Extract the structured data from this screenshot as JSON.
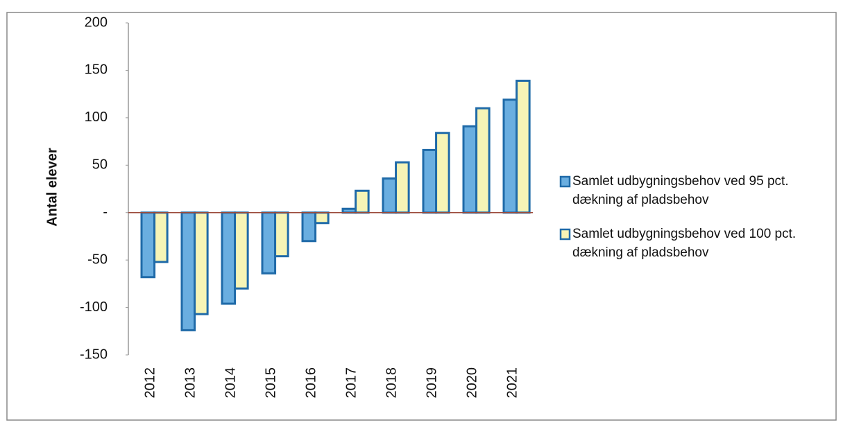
{
  "chart_data": {
    "type": "bar",
    "y_axis_label": "Antal elever",
    "categories": [
      "2012",
      "2013",
      "2014",
      "2015",
      "2016",
      "2017",
      "2018",
      "2019",
      "2020",
      "2021"
    ],
    "series": [
      {
        "name": "Samlet udbygningsbehov ved 95 pct. dækning af pladsbehov",
        "color": "#6aaee0",
        "values": [
          -68,
          -124,
          -96,
          -64,
          -30,
          4,
          36,
          66,
          91,
          119
        ]
      },
      {
        "name": "Samlet udbygningsbehov ved 100 pct. dækning af pladsbehov",
        "color": "#f6f4b6",
        "values": [
          -52,
          -107,
          -80,
          -46,
          -11,
          23,
          53,
          84,
          110,
          139
        ]
      }
    ],
    "ylim": [
      -150,
      200
    ],
    "yticks": [
      -150,
      -100,
      -50,
      {
        "value": 0,
        "label": "-"
      },
      50,
      100,
      150,
      200
    ],
    "grid": false,
    "legend": "right"
  }
}
